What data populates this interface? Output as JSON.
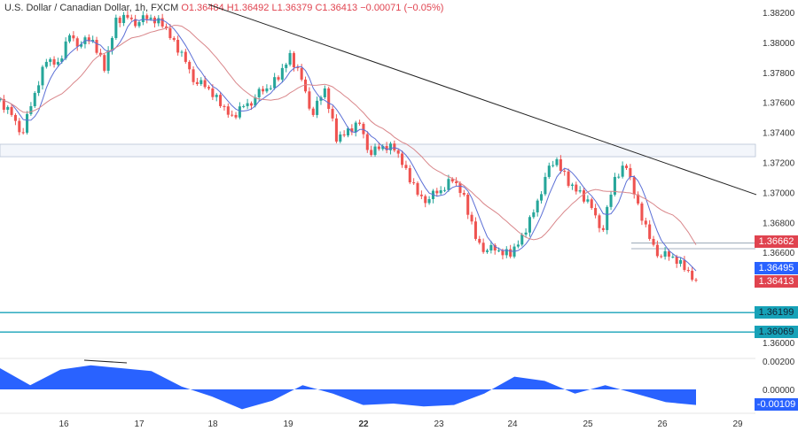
{
  "header": {
    "symbol": "U.S. Dollar / Canadian Dollar, 1h, FXCM",
    "open": "O1.36484",
    "high": "H1.36492",
    "low": "L1.36379",
    "close": "C1.36413",
    "change": "−0.00071 (−0.05%)"
  },
  "colors": {
    "up": "#26a69a",
    "down": "#ef5350",
    "ma_fast": "#5b6fd6",
    "ma_slow": "#d9868a",
    "trend": "#222222",
    "teal": "#17a2b8",
    "osc": "#2962ff"
  },
  "chart_data": {
    "type": "candlestick",
    "x_ticks": [
      "16",
      "17",
      "18",
      "19",
      "22",
      "23",
      "24",
      "25",
      "26",
      "29"
    ],
    "y_ticks": [
      "1.38200",
      "1.38000",
      "1.37800",
      "1.37600",
      "1.37400",
      "1.37200",
      "1.37000",
      "1.36800",
      "1.36600",
      "1.36000"
    ],
    "ylim": [
      1.3597,
      1.3828
    ],
    "closes": [
      1.37622,
      1.37516,
      1.37398,
      1.37663,
      1.3787,
      1.3787,
      1.38047,
      1.37988,
      1.38017,
      1.37811,
      1.38165,
      1.38165,
      1.38135,
      1.38165,
      1.38106,
      1.38017,
      1.3787,
      1.37722,
      1.37693,
      1.37575,
      1.37516,
      1.37575,
      1.37634,
      1.37693,
      1.37752,
      1.37929,
      1.37752,
      1.37516,
      1.37693,
      1.37339,
      1.37427,
      1.37457,
      1.3725,
      1.37309,
      1.3728,
      1.37162,
      1.36985,
      1.36955,
      1.37014,
      1.37073,
      1.36985,
      1.3669,
      1.36613,
      1.36613,
      1.36572,
      1.36719,
      1.36867,
      1.37103,
      1.37221,
      1.37044,
      1.37014,
      1.36896,
      1.36749,
      1.37103,
      1.37162,
      1.36926,
      1.3669,
      1.36572,
      1.36572,
      1.36483,
      1.36413
    ],
    "trendline": [
      1.38253,
      1.36985
    ],
    "zone": [
      1.37321,
      1.37238
    ],
    "levels": [
      1.36662,
      1.36625
    ],
    "teal_levels": [
      "1.36199",
      "1.36069"
    ],
    "price_tags": {
      "ma_slow": "1.36662",
      "ma_fast": "1.36495",
      "last": "1.36413"
    },
    "oscillator": {
      "y_ticks": [
        "0.00200",
        "0.00000"
      ],
      "last": "-0.00109",
      "values": [
        0.0015,
        0.0003,
        0.0014,
        0.0017,
        0.0015,
        0.0013,
        0.0002,
        -0.0005,
        -0.0014,
        -0.0008,
        0.0003,
        -0.0003,
        -0.0011,
        -0.001,
        -0.0012,
        -0.0011,
        -0.0003,
        0.0009,
        0.0006,
        -0.0003,
        0.0003,
        -0.0003,
        -0.0009,
        -0.0011
      ]
    }
  }
}
